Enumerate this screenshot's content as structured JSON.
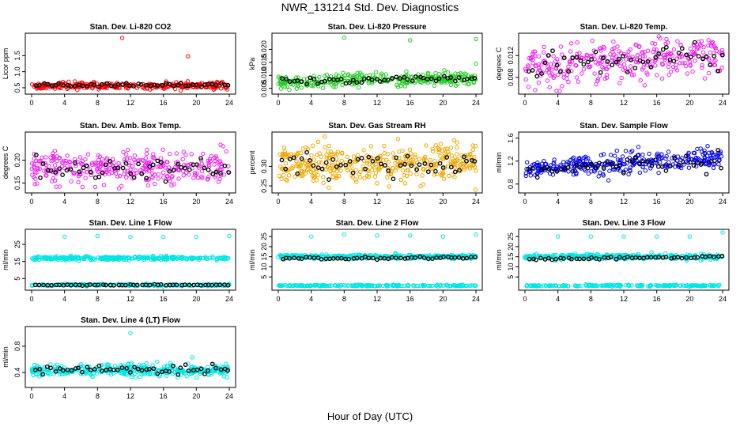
{
  "title": "NWR_131214  Std. Dev. Diagnostics",
  "xlabel": "Hour of Day (UTC)",
  "colors": {
    "red": "#ff0000",
    "green": "#22cc22",
    "magenta": "#ee22ee",
    "orange": "#f0a800",
    "blue": "#0000ee",
    "cyan": "#00e5e5",
    "black": "#000000"
  },
  "chart_data": [
    {
      "type": "scatter",
      "title": "Stan. Dev. Li-820 CO2",
      "ylabel": "Licor ppm",
      "color": "red",
      "xlim": [
        0,
        24
      ],
      "xticks": [
        "0",
        "4",
        "8",
        "12",
        "16",
        "20",
        "24"
      ],
      "ylim": [
        0.4,
        2.1
      ],
      "yticks": [
        "0.5",
        "1.0",
        "1.5"
      ],
      "bands": [
        {
          "center": 0.56,
          "spread": 0.05,
          "n": 300,
          "color": "red"
        },
        {
          "center": 0.58,
          "spread": 0.03,
          "n": 50,
          "color": "black"
        }
      ],
      "outliers": [
        {
          "x": 11,
          "y": 2.05
        },
        {
          "x": 19,
          "y": 1.48
        }
      ]
    },
    {
      "type": "scatter",
      "title": "Stan. Dev. Li-820 Pressure",
      "ylabel": "kPa",
      "color": "green",
      "xlim": [
        0,
        24
      ],
      "xticks": [
        "0",
        "4",
        "8",
        "12",
        "16",
        "20",
        "24"
      ],
      "ylim": [
        0.004,
        0.025
      ],
      "yticks": [
        "0.005",
        "0.010",
        "0.015",
        "0.020"
      ],
      "bands": [
        {
          "center": 0.0075,
          "spread": 0.0012,
          "trend": 0.0015,
          "n": 300,
          "color": "green"
        },
        {
          "center": 0.0074,
          "spread": 0.0007,
          "trend": 0.0016,
          "n": 50,
          "color": "black"
        }
      ],
      "outliers": [
        {
          "x": 8,
          "y": 0.0245
        },
        {
          "x": 16,
          "y": 0.0235
        },
        {
          "x": 24,
          "y": 0.024
        },
        {
          "x": 24,
          "y": 0.0145
        }
      ]
    },
    {
      "type": "scatter",
      "title": "Stan. Dev. Li-820 Temp.",
      "ylabel": "degrees C",
      "color": "magenta",
      "xlim": [
        0,
        24
      ],
      "xticks": [
        "0",
        "4",
        "8",
        "12",
        "16",
        "20",
        "24"
      ],
      "ylim": [
        0.0055,
        0.0155
      ],
      "yticks": [
        "0.008",
        "0.012"
      ],
      "bands": [
        {
          "center": 0.0098,
          "spread": 0.0018,
          "trend": 0.0025,
          "n": 320,
          "color": "magenta"
        },
        {
          "center": 0.0098,
          "spread": 0.0012,
          "trend": 0.0025,
          "n": 50,
          "color": "black"
        }
      ],
      "outliers": []
    },
    {
      "type": "scatter",
      "title": "Stan. Dev. Amb. Box Temp.",
      "ylabel": "degrees C",
      "color": "magenta",
      "xlim": [
        0,
        24
      ],
      "xticks": [
        "0",
        "4",
        "8",
        "12",
        "16",
        "20",
        "24"
      ],
      "ylim": [
        0.135,
        0.255
      ],
      "yticks": [
        "0.15",
        "0.20"
      ],
      "bands": [
        {
          "center": 0.185,
          "spread": 0.018,
          "n": 320,
          "color": "magenta"
        },
        {
          "center": 0.18,
          "spread": 0.013,
          "n": 50,
          "color": "black"
        }
      ],
      "outliers": []
    },
    {
      "type": "scatter",
      "title": "Stan. Dev. Gas Stream RH",
      "ylabel": "percent",
      "color": "orange",
      "xlim": [
        0,
        24
      ],
      "xticks": [
        "0",
        "4",
        "8",
        "12",
        "16",
        "20",
        "24"
      ],
      "ylim": [
        0.24,
        0.38
      ],
      "yticks": [
        "0.25",
        "0.30"
      ],
      "bands": [
        {
          "center": 0.305,
          "spread": 0.024,
          "n": 380,
          "color": "orange"
        },
        {
          "center": 0.305,
          "spread": 0.016,
          "n": 50,
          "color": "black"
        }
      ],
      "outliers": []
    },
    {
      "type": "scatter",
      "title": "Stan. Dev. Sample Flow",
      "ylabel": "ml/min",
      "color": "blue",
      "xlim": [
        0,
        24
      ],
      "xticks": [
        "0",
        "4",
        "8",
        "12",
        "16",
        "20",
        "24"
      ],
      "ylim": [
        0.7,
        1.65
      ],
      "yticks": [
        "0.8",
        "1.2",
        "1.6"
      ],
      "bands": [
        {
          "center": 1.05,
          "spread": 0.09,
          "trend": 0.2,
          "n": 320,
          "color": "blue"
        },
        {
          "center": 1.02,
          "spread": 0.07,
          "trend": 0.2,
          "n": 50,
          "color": "black"
        }
      ],
      "outliers": []
    },
    {
      "type": "scatter",
      "title": "Stan. Dev. Line 1 Flow",
      "ylabel": "ml/min",
      "color": "cyan",
      "xlim": [
        0,
        24
      ],
      "xticks": [
        "0",
        "4",
        "8",
        "12",
        "16",
        "20",
        "24"
      ],
      "ylim": [
        0,
        32
      ],
      "yticks": [
        "5",
        "15",
        "25"
      ],
      "bands": [
        {
          "center": 17,
          "spread": 0.5,
          "n": 320,
          "color": "cyan"
        },
        {
          "center": 1.2,
          "spread": 0.3,
          "n": 200,
          "color": "cyan"
        },
        {
          "center": 1.2,
          "spread": 0.15,
          "n": 50,
          "color": "black"
        }
      ],
      "outliers": [
        {
          "x": 4,
          "y": 29.5
        },
        {
          "x": 8,
          "y": 30
        },
        {
          "x": 12,
          "y": 29.5
        },
        {
          "x": 16,
          "y": 29.5
        },
        {
          "x": 20,
          "y": 29.5
        },
        {
          "x": 24,
          "y": 30
        }
      ]
    },
    {
      "type": "scatter",
      "title": "Stan. Dev. Line 2 Flow",
      "ylabel": "ml/min",
      "color": "cyan",
      "xlim": [
        0,
        24
      ],
      "xticks": [
        "0",
        "4",
        "8",
        "12",
        "16",
        "20",
        "24"
      ],
      "ylim": [
        0,
        27
      ],
      "yticks": [
        "5",
        "10",
        "15",
        "20",
        "25"
      ],
      "bands": [
        {
          "center": 15,
          "spread": 0.5,
          "n": 320,
          "color": "cyan"
        },
        {
          "center": 14,
          "spread": 0.3,
          "trend": 0.6,
          "n": 50,
          "color": "black"
        },
        {
          "center": 0.7,
          "spread": 0.2,
          "n": 200,
          "color": "cyan"
        }
      ],
      "outliers": [
        {
          "x": 4,
          "y": 25
        },
        {
          "x": 8,
          "y": 26
        },
        {
          "x": 12,
          "y": 25.5
        },
        {
          "x": 16,
          "y": 25.5
        },
        {
          "x": 20,
          "y": 25
        },
        {
          "x": 24,
          "y": 26
        }
      ]
    },
    {
      "type": "scatter",
      "title": "Stan. Dev. Line 3 Flow",
      "ylabel": "ml/min",
      "color": "cyan",
      "xlim": [
        0,
        24
      ],
      "xticks": [
        "0",
        "4",
        "8",
        "12",
        "16",
        "20",
        "24"
      ],
      "ylim": [
        0,
        27
      ],
      "yticks": [
        "5",
        "10",
        "15",
        "20",
        "25"
      ],
      "bands": [
        {
          "center": 15,
          "spread": 0.6,
          "n": 320,
          "color": "cyan"
        },
        {
          "center": 13.8,
          "spread": 0.3,
          "trend": 1.2,
          "n": 50,
          "color": "black"
        },
        {
          "center": 0.7,
          "spread": 0.2,
          "n": 200,
          "color": "cyan"
        }
      ],
      "outliers": [
        {
          "x": 4,
          "y": 25
        },
        {
          "x": 8,
          "y": 25
        },
        {
          "x": 12,
          "y": 25
        },
        {
          "x": 16,
          "y": 25
        },
        {
          "x": 20,
          "y": 25
        },
        {
          "x": 24,
          "y": 27
        }
      ]
    },
    {
      "type": "scatter",
      "title": "Stan. Dev. Line 4 (LT) Flow",
      "ylabel": "ml/min",
      "color": "cyan",
      "xlim": [
        0,
        24
      ],
      "xticks": [
        "0",
        "4",
        "8",
        "12",
        "16",
        "20",
        "24"
      ],
      "ylim": [
        0.22,
        1.05
      ],
      "yticks": [
        "0.4",
        "0.8"
      ],
      "bands": [
        {
          "center": 0.43,
          "spread": 0.045,
          "n": 380,
          "color": "cyan"
        },
        {
          "center": 0.44,
          "spread": 0.035,
          "n": 50,
          "color": "black"
        }
      ],
      "outliers": [
        {
          "x": 12,
          "y": 1.0
        },
        {
          "x": 19.5,
          "y": 0.63
        }
      ]
    }
  ]
}
